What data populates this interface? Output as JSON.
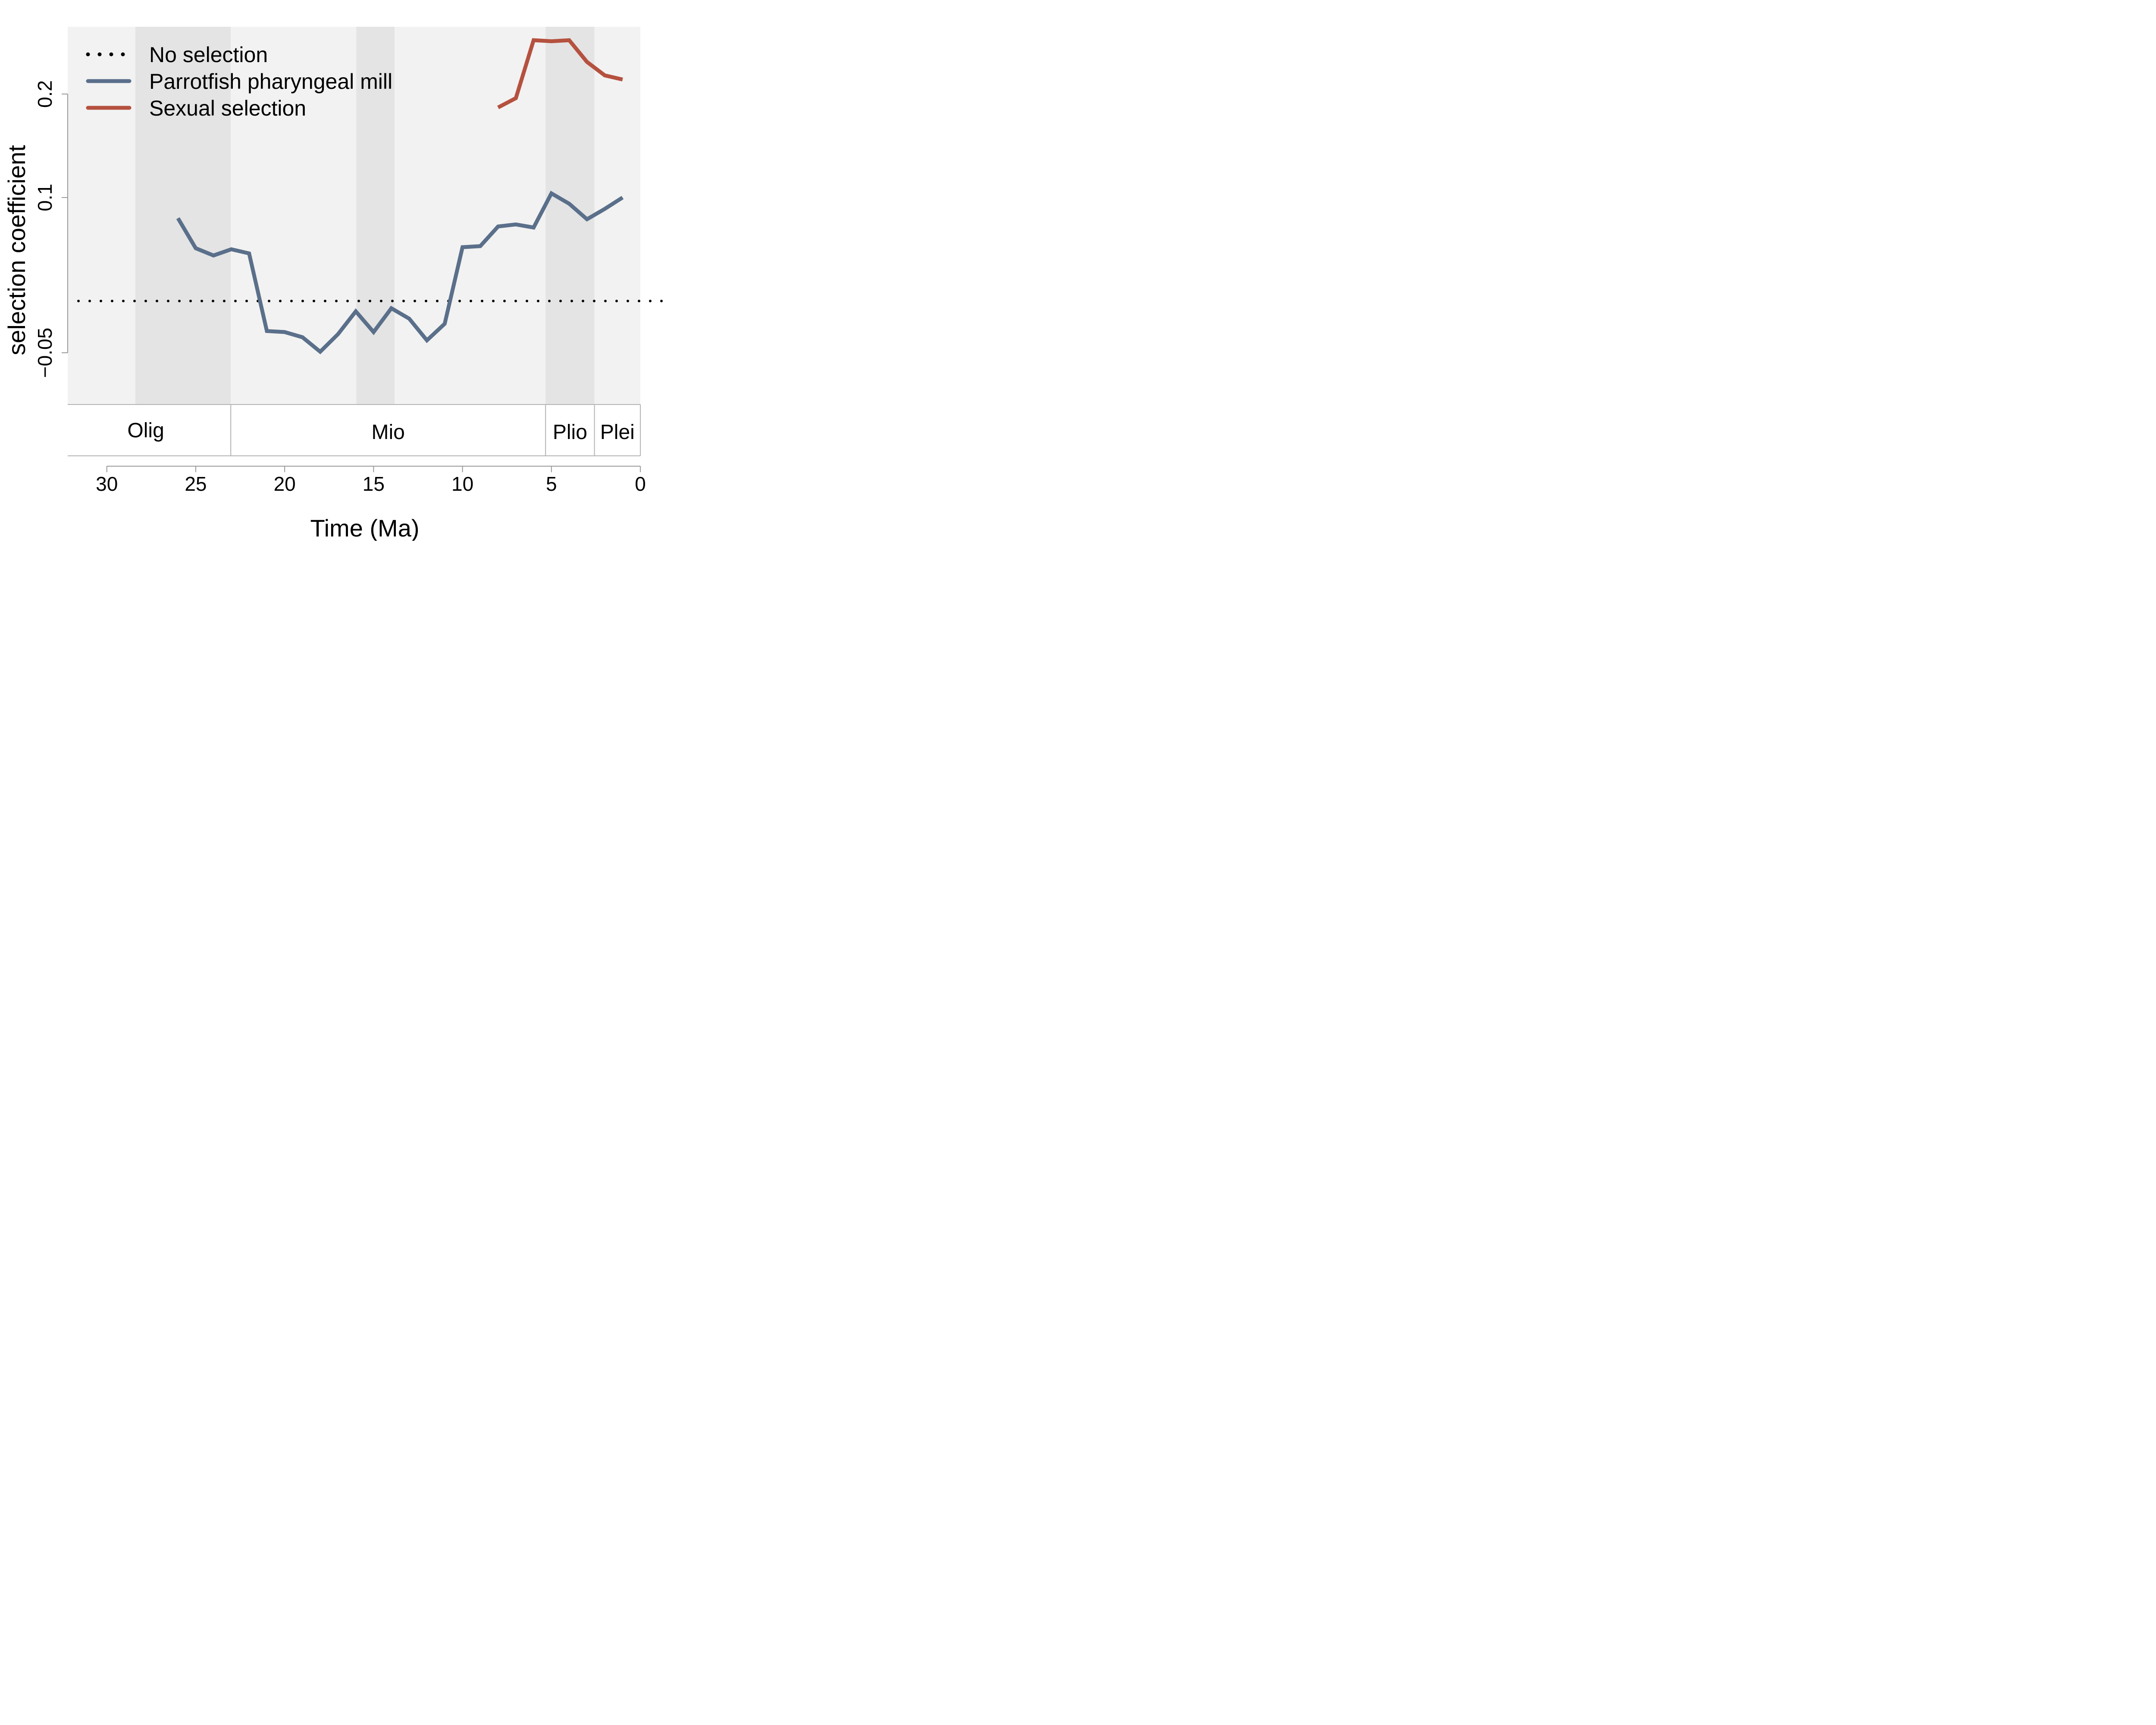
{
  "chart_data": {
    "type": "line",
    "xlabel": "Time (Ma)",
    "ylabel": "selection coefficient",
    "xlim": [
      32.2,
      0
    ],
    "ylim": [
      -0.1,
      0.265
    ],
    "x_ticks": [
      "30",
      "25",
      "20",
      "15",
      "10",
      "5",
      "0"
    ],
    "y_ticks": [
      "0.2",
      "0.1",
      "−0.05"
    ],
    "y_tick_values": [
      0.2,
      0.1,
      -0.05
    ],
    "legend": {
      "position": "top-left"
    },
    "reference_line": {
      "name": "No selection",
      "y": 0,
      "style": "dotted",
      "color": "#000000"
    },
    "series": [
      {
        "name": "Parrotfish pharyngeal mill",
        "color": "#5a6f8a",
        "x": [
          26,
          25,
          24,
          23,
          22,
          21,
          20,
          19,
          18,
          17,
          16,
          15,
          14,
          13,
          12,
          11,
          10,
          9,
          8,
          7,
          6,
          5,
          4,
          3,
          2,
          1
        ],
        "y": [
          0.08,
          0.051,
          0.044,
          0.05,
          0.046,
          -0.029,
          -0.03,
          -0.035,
          -0.049,
          -0.032,
          -0.01,
          -0.03,
          -0.007,
          -0.017,
          -0.038,
          -0.022,
          0.052,
          0.053,
          0.072,
          0.074,
          0.071,
          0.104,
          0.094,
          0.079,
          0.089,
          0.1
        ]
      },
      {
        "name": "Sexual selection",
        "color": "#b5513f",
        "x": [
          8,
          7,
          6,
          5,
          4,
          3,
          2,
          1
        ],
        "y": [
          0.187,
          0.196,
          0.252,
          0.251,
          0.252,
          0.231,
          0.218,
          0.214
        ]
      }
    ],
    "background_bands": [
      {
        "from": 32.2,
        "to": 28.4,
        "shade": "light"
      },
      {
        "from": 28.4,
        "to": 23.03,
        "shade": "dark"
      },
      {
        "from": 23.03,
        "to": 15.97,
        "shade": "light"
      },
      {
        "from": 15.97,
        "to": 13.82,
        "shade": "dark"
      },
      {
        "from": 13.82,
        "to": 5.33,
        "shade": "light"
      },
      {
        "from": 5.33,
        "to": 2.58,
        "shade": "dark"
      },
      {
        "from": 2.58,
        "to": 0,
        "shade": "light"
      }
    ],
    "epochs": [
      {
        "label": "Olig",
        "from": 32.2,
        "to": 23.03
      },
      {
        "label": "Mio",
        "from": 23.03,
        "to": 5.33
      },
      {
        "label": "Plio",
        "from": 5.33,
        "to": 2.58
      },
      {
        "label": "Plei",
        "from": 2.58,
        "to": 0
      }
    ],
    "colors": {
      "band_light": "#f2f2f2",
      "band_dark": "#e4e4e4"
    }
  }
}
